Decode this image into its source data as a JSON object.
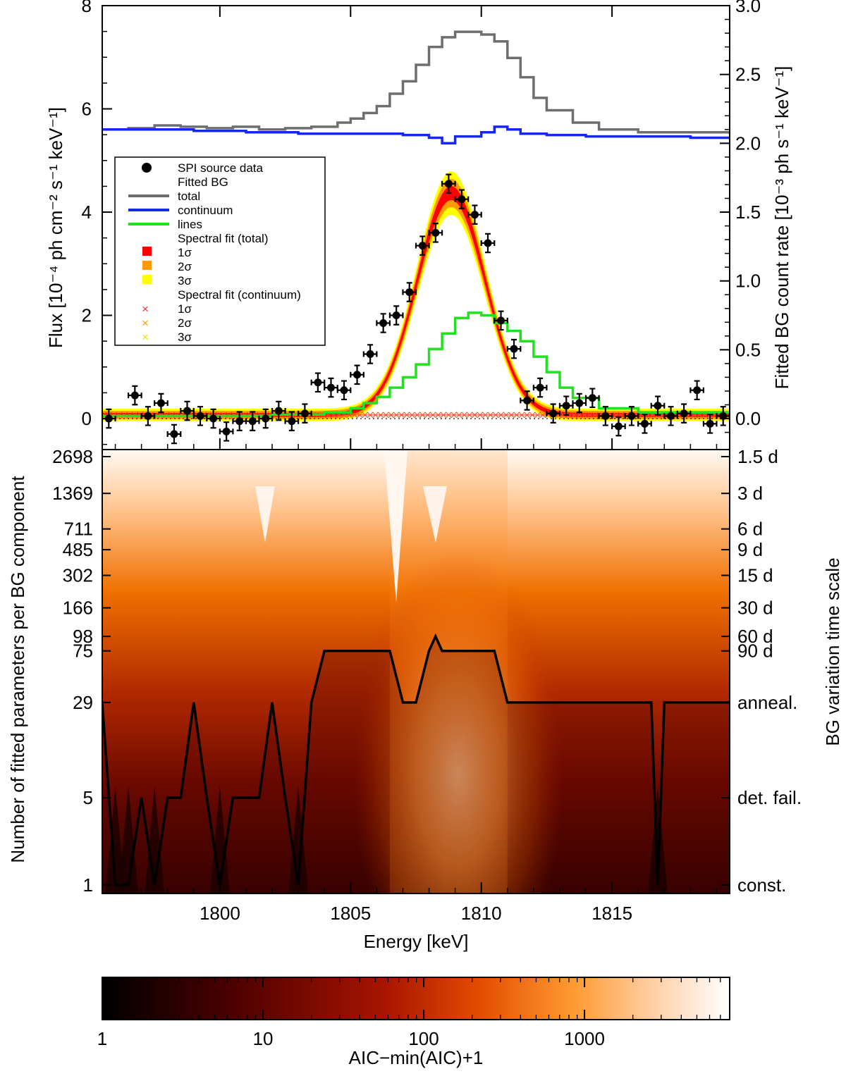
{
  "chart_data": {
    "type": "composite",
    "x_range": [
      1795.5,
      1819.5
    ],
    "top_panel": {
      "type": "line",
      "ylabel_left": "Flux [10⁻⁴ ph cm⁻² s⁻¹ keV⁻¹]",
      "ylabel_right": "Fitted BG count rate [10⁻³ ph s⁻¹ keV⁻¹]",
      "ylim_left": [
        -0.6,
        8
      ],
      "ylim_right": [
        -0.225,
        3.0
      ],
      "yticks_left": [
        "0",
        "2",
        "4",
        "6",
        "8"
      ],
      "yticks_right": [
        "0.0",
        "0.5",
        "1.0",
        "1.5",
        "2.0",
        "2.5",
        "3.0"
      ],
      "legend": {
        "data": "SPI source data",
        "bg_header": "Fitted BG",
        "total": "total",
        "continuum": "continuum",
        "lines": "lines",
        "fit_total_header": "Spectral fit (total)",
        "fit_cont_header": "Spectral fit (continuum)",
        "s1": "1σ",
        "s2": "2σ",
        "s3": "3σ"
      },
      "colors": {
        "total": "#6e6e6e",
        "continuum": "#1528e6",
        "lines": "#22e022",
        "s1": "#ff0000",
        "s2": "#ff9a00",
        "s3": "#ffff00",
        "data": "#000000"
      },
      "source_data": {
        "energy": [
          1795.75,
          1796.75,
          1797.25,
          1797.75,
          1798.25,
          1798.75,
          1799.25,
          1799.75,
          1800.25,
          1800.75,
          1801.25,
          1801.75,
          1802.25,
          1802.75,
          1803.25,
          1803.75,
          1804.25,
          1804.75,
          1805.25,
          1805.75,
          1806.25,
          1806.75,
          1807.25,
          1807.75,
          1808.25,
          1808.75,
          1809.25,
          1809.75,
          1810.25,
          1810.75,
          1811.25,
          1811.75,
          1812.25,
          1812.75,
          1813.25,
          1813.75,
          1814.25,
          1814.75,
          1815.25,
          1815.75,
          1816.25,
          1816.75,
          1817.25,
          1817.75,
          1818.25,
          1818.75,
          1819.25
        ],
        "flux": [
          0.0,
          0.45,
          0.05,
          0.3,
          -0.3,
          0.15,
          0.05,
          0.0,
          -0.25,
          -0.05,
          -0.05,
          0.0,
          0.15,
          -0.05,
          0.1,
          0.7,
          0.6,
          0.55,
          0.85,
          1.25,
          1.85,
          2.0,
          2.45,
          3.35,
          3.6,
          4.55,
          4.25,
          3.95,
          3.4,
          1.9,
          1.35,
          0.35,
          0.6,
          0.1,
          0.25,
          0.3,
          0.4,
          0.05,
          -0.15,
          0.05,
          -0.1,
          0.25,
          0.05,
          0.1,
          0.55,
          -0.1,
          0.05
        ],
        "err": 0.18
      },
      "bg_total_right_axis": {
        "energy": [
          1795.5,
          1796.5,
          1797.5,
          1798.5,
          1799.5,
          1800.5,
          1801.5,
          1802.5,
          1803.5,
          1804.5,
          1805.0,
          1805.5,
          1806.0,
          1806.5,
          1807.0,
          1807.5,
          1808.0,
          1808.5,
          1809.0,
          1809.5,
          1810.0,
          1810.5,
          1811.0,
          1811.5,
          1812.0,
          1812.5,
          1813.5,
          1814.5,
          1816.0,
          1818.0,
          1819.5
        ],
        "rate": [
          2.1,
          2.11,
          2.13,
          2.12,
          2.11,
          2.12,
          2.1,
          2.11,
          2.12,
          2.15,
          2.18,
          2.22,
          2.27,
          2.36,
          2.45,
          2.57,
          2.7,
          2.77,
          2.81,
          2.81,
          2.79,
          2.74,
          2.62,
          2.48,
          2.33,
          2.24,
          2.15,
          2.1,
          2.08,
          2.08,
          2.07
        ]
      },
      "bg_continuum_right_axis": {
        "energy": [
          1795.5,
          1797.0,
          1799.0,
          1801.0,
          1803.0,
          1805.0,
          1807.0,
          1808.0,
          1808.5,
          1809.0,
          1810.0,
          1810.5,
          1811.0,
          1811.5,
          1812.5,
          1814.0,
          1816.0,
          1818.0,
          1819.5
        ],
        "rate": [
          2.1,
          2.1,
          2.09,
          2.08,
          2.07,
          2.07,
          2.06,
          2.04,
          2.0,
          2.05,
          2.08,
          2.12,
          2.1,
          2.07,
          2.06,
          2.05,
          2.05,
          2.04,
          2.03
        ]
      },
      "bg_lines_left_axis": {
        "energy": [
          1795.5,
          1799.0,
          1802.0,
          1804.0,
          1805.0,
          1805.5,
          1806.0,
          1806.5,
          1807.0,
          1807.5,
          1808.0,
          1808.5,
          1809.0,
          1809.5,
          1810.0,
          1810.5,
          1811.0,
          1811.5,
          1812.0,
          1812.5,
          1813.0,
          1813.5,
          1814.5,
          1816.0,
          1819.5
        ],
        "flux": [
          0.05,
          0.05,
          0.08,
          0.12,
          0.2,
          0.3,
          0.42,
          0.6,
          0.8,
          1.05,
          1.35,
          1.65,
          1.95,
          2.05,
          2.0,
          1.85,
          1.7,
          1.5,
          1.2,
          0.9,
          0.6,
          0.4,
          0.2,
          0.12,
          0.1
        ]
      },
      "spectral_fit": {
        "model": "gaussian + constant",
        "peak_energy_keV": 1808.85,
        "peak_flux": 4.3,
        "sigma_keV": 1.3,
        "continuum_flux": 0.07
      }
    },
    "bottom_panel": {
      "type": "heatmap",
      "xlabel": "Energy [keV]",
      "xticks": [
        "1800",
        "1805",
        "1810",
        "1815"
      ],
      "ylabel_left": "Number of fitted parameters per BG component",
      "ylabel_right": "BG variation time scale",
      "yticks_left": [
        "1",
        "5",
        "29",
        "75",
        "98",
        "166",
        "302",
        "485",
        "711",
        "1369",
        "2698"
      ],
      "yticks_right": [
        "const.",
        "det. fail.",
        "anneal.",
        "90 d",
        "60 d",
        "30 d",
        "15 d",
        "9 d",
        "6 d",
        "3 d",
        "1.5 d"
      ],
      "min_aic_path": {
        "energy": [
          1795.5,
          1796.0,
          1796.5,
          1797.0,
          1797.5,
          1798.0,
          1798.5,
          1799.0,
          1799.5,
          1800.0,
          1800.5,
          1801.0,
          1801.5,
          1802.0,
          1802.5,
          1803.0,
          1803.5,
          1804.0,
          1805.0,
          1806.0,
          1806.5,
          1807.0,
          1807.5,
          1808.0,
          1808.25,
          1808.5,
          1809.0,
          1810.0,
          1810.5,
          1811.0,
          1812.0,
          1813.0,
          1814.0,
          1815.0,
          1816.0,
          1816.5,
          1816.75,
          1817.0,
          1817.5,
          1818.0,
          1819.5
        ],
        "n_params": [
          29,
          1,
          1,
          5,
          1,
          5,
          5,
          29,
          5,
          1,
          5,
          5,
          5,
          29,
          5,
          1,
          29,
          75,
          75,
          75,
          75,
          29,
          29,
          75,
          98,
          75,
          75,
          75,
          75,
          29,
          29,
          29,
          29,
          29,
          29,
          29,
          1,
          29,
          29,
          29,
          29
        ]
      }
    },
    "colorbar": {
      "label": "AIC−min(AIC)+1",
      "ticks": [
        "1",
        "10",
        "100",
        "1000"
      ],
      "range": [
        1,
        8000
      ],
      "scale": "log",
      "colors": [
        "#000000",
        "#6a0000",
        "#c42a00",
        "#ff8a00",
        "#ffc080",
        "#ffffff"
      ]
    }
  }
}
